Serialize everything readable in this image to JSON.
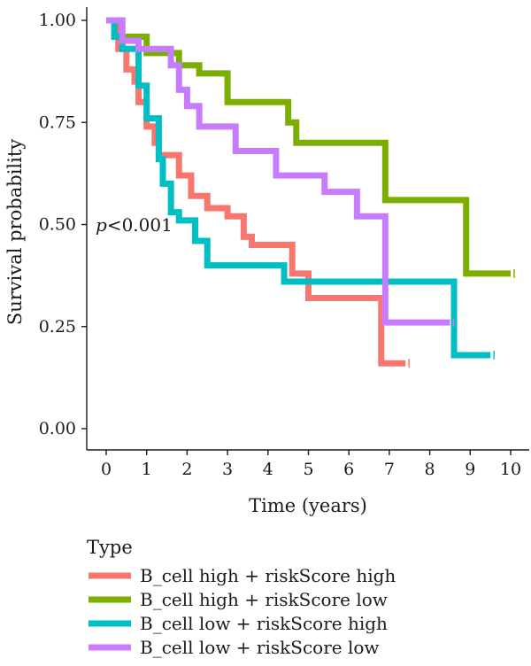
{
  "chart_data": {
    "type": "line",
    "xlabel": "Time (years)",
    "ylabel": "Survival probability",
    "xlim": [
      0,
      10
    ],
    "ylim": [
      0,
      1
    ],
    "x_ticks": [
      "0",
      "1",
      "2",
      "3",
      "4",
      "5",
      "6",
      "7",
      "8",
      "9",
      "10"
    ],
    "y_ticks": [
      "0.00",
      "0.25",
      "0.50",
      "0.75",
      "1.00"
    ],
    "grid": false,
    "annotation": {
      "p_italic": "p",
      "p_rest": "<0.001"
    },
    "legend": {
      "title": "Type",
      "placement": "bottom"
    },
    "series": [
      {
        "name": "B_cell high + riskScore high",
        "color": "#F8766D",
        "points": [
          [
            0,
            1.0
          ],
          [
            0.3,
            0.93
          ],
          [
            0.5,
            0.88
          ],
          [
            0.7,
            0.85
          ],
          [
            0.8,
            0.8
          ],
          [
            1.0,
            0.74
          ],
          [
            1.2,
            0.7
          ],
          [
            1.3,
            0.67
          ],
          [
            1.8,
            0.62
          ],
          [
            2.1,
            0.57
          ],
          [
            2.5,
            0.54
          ],
          [
            3.0,
            0.52
          ],
          [
            3.4,
            0.47
          ],
          [
            3.6,
            0.45
          ],
          [
            4.6,
            0.38
          ],
          [
            5.0,
            0.32
          ],
          [
            6.8,
            0.16
          ],
          [
            7.4,
            0.16
          ]
        ]
      },
      {
        "name": "B_cell high + riskScore low",
        "color": "#7CAE00",
        "points": [
          [
            0,
            1.0
          ],
          [
            0.2,
            0.96
          ],
          [
            1.0,
            0.92
          ],
          [
            1.8,
            0.89
          ],
          [
            2.3,
            0.87
          ],
          [
            3.0,
            0.8
          ],
          [
            4.5,
            0.75
          ],
          [
            4.7,
            0.7
          ],
          [
            6.9,
            0.56
          ],
          [
            8.9,
            0.38
          ],
          [
            10.0,
            0.38
          ]
        ]
      },
      {
        "name": "B_cell low + riskScore high",
        "color": "#00BFC4",
        "points": [
          [
            0,
            1.0
          ],
          [
            0.2,
            0.96
          ],
          [
            0.4,
            0.93
          ],
          [
            0.8,
            0.84
          ],
          [
            1.0,
            0.76
          ],
          [
            1.3,
            0.66
          ],
          [
            1.4,
            0.6
          ],
          [
            1.6,
            0.53
          ],
          [
            1.8,
            0.51
          ],
          [
            2.2,
            0.46
          ],
          [
            2.5,
            0.4
          ],
          [
            4.4,
            0.36
          ],
          [
            8.6,
            0.18
          ],
          [
            9.5,
            0.18
          ]
        ]
      },
      {
        "name": "B_cell low + riskScore low",
        "color": "#C77CFF",
        "points": [
          [
            0,
            1.0
          ],
          [
            0.4,
            0.95
          ],
          [
            0.8,
            0.93
          ],
          [
            1.6,
            0.89
          ],
          [
            1.8,
            0.83
          ],
          [
            2.0,
            0.79
          ],
          [
            2.3,
            0.74
          ],
          [
            3.2,
            0.68
          ],
          [
            4.2,
            0.62
          ],
          [
            5.4,
            0.58
          ],
          [
            6.2,
            0.52
          ],
          [
            6.9,
            0.26
          ],
          [
            8.5,
            0.26
          ]
        ]
      }
    ]
  }
}
